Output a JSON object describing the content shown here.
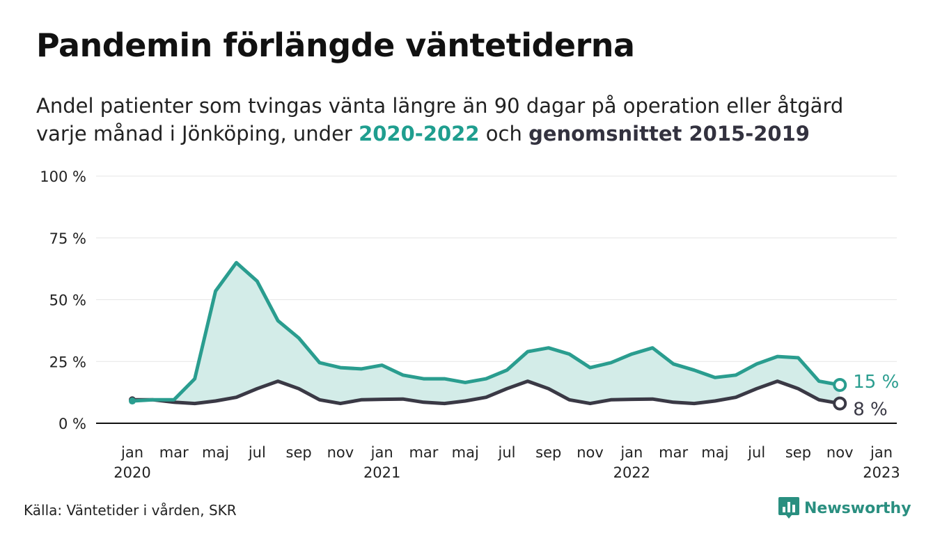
{
  "title": "Pandemin förlängde väntetiderna",
  "subtitle": {
    "line1": "Andel patienter som tvingas vänta längre än 90 dagar på operation eller åtgärd",
    "line2_prefix": "varje månad i Jönköping, under ",
    "highlight1": "2020-2022",
    "line2_middle": " och ",
    "highlight2": "genomsnittet 2015-2019"
  },
  "source": "Källa: Väntetider i vården, SKR",
  "logo": {
    "text": "Newsworthy",
    "icon": "newsworthy-chart-icon"
  },
  "colors": {
    "current": "#2a9d8f",
    "average": "#3a3945",
    "fill": "#d3ece8",
    "grid": "#e6e6e6",
    "baseline": "#111111"
  },
  "chart_data": {
    "type": "line",
    "title": "Pandemin förlängde väntetiderna",
    "x_start": "2020-01",
    "x_end": "2023-01",
    "x_ticks": [
      {
        "month": "2020-01",
        "label": "jan",
        "year": "2020"
      },
      {
        "month": "2020-03",
        "label": "mar",
        "year": ""
      },
      {
        "month": "2020-05",
        "label": "maj",
        "year": ""
      },
      {
        "month": "2020-07",
        "label": "jul",
        "year": ""
      },
      {
        "month": "2020-09",
        "label": "sep",
        "year": ""
      },
      {
        "month": "2020-11",
        "label": "nov",
        "year": ""
      },
      {
        "month": "2021-01",
        "label": "jan",
        "year": "2021"
      },
      {
        "month": "2021-03",
        "label": "mar",
        "year": ""
      },
      {
        "month": "2021-05",
        "label": "maj",
        "year": ""
      },
      {
        "month": "2021-07",
        "label": "jul",
        "year": ""
      },
      {
        "month": "2021-09",
        "label": "sep",
        "year": ""
      },
      {
        "month": "2021-11",
        "label": "nov",
        "year": ""
      },
      {
        "month": "2022-01",
        "label": "jan",
        "year": "2022"
      },
      {
        "month": "2022-03",
        "label": "mar",
        "year": ""
      },
      {
        "month": "2022-05",
        "label": "maj",
        "year": ""
      },
      {
        "month": "2022-07",
        "label": "jul",
        "year": ""
      },
      {
        "month": "2022-09",
        "label": "sep",
        "year": ""
      },
      {
        "month": "2022-11",
        "label": "nov",
        "year": ""
      },
      {
        "month": "2023-01",
        "label": "jan",
        "year": "2023"
      }
    ],
    "y_ticks": [
      {
        "value": 0,
        "label": "0 %"
      },
      {
        "value": 25,
        "label": "25 %"
      },
      {
        "value": 50,
        "label": "50 %"
      },
      {
        "value": 75,
        "label": "75 %"
      },
      {
        "value": 100,
        "label": "100 %"
      }
    ],
    "ylim": [
      0,
      100
    ],
    "grid": true,
    "series": [
      {
        "name": "2020-2022",
        "color": "#2a9d8f",
        "end_label": "15 %",
        "values": [
          {
            "month": "2020-01",
            "y": 9
          },
          {
            "month": "2020-02",
            "y": 9.5
          },
          {
            "month": "2020-03",
            "y": 9.5
          },
          {
            "month": "2020-04",
            "y": 18
          },
          {
            "month": "2020-05",
            "y": 53.5
          },
          {
            "month": "2020-06",
            "y": 65
          },
          {
            "month": "2020-07",
            "y": 57.5
          },
          {
            "month": "2020-08",
            "y": 41.5
          },
          {
            "month": "2020-09",
            "y": 34.5
          },
          {
            "month": "2020-10",
            "y": 24.5
          },
          {
            "month": "2020-11",
            "y": 22.5
          },
          {
            "month": "2020-12",
            "y": 22
          },
          {
            "month": "2021-01",
            "y": 23.5
          },
          {
            "month": "2021-02",
            "y": 19.5
          },
          {
            "month": "2021-03",
            "y": 18
          },
          {
            "month": "2021-04",
            "y": 18
          },
          {
            "month": "2021-05",
            "y": 16.5
          },
          {
            "month": "2021-06",
            "y": 18
          },
          {
            "month": "2021-07",
            "y": 21.5
          },
          {
            "month": "2021-08",
            "y": 29
          },
          {
            "month": "2021-09",
            "y": 30.5
          },
          {
            "month": "2021-10",
            "y": 28
          },
          {
            "month": "2021-11",
            "y": 22.5
          },
          {
            "month": "2021-12",
            "y": 24.5
          },
          {
            "month": "2022-01",
            "y": 28
          },
          {
            "month": "2022-02",
            "y": 30.5
          },
          {
            "month": "2022-03",
            "y": 24
          },
          {
            "month": "2022-04",
            "y": 21.5
          },
          {
            "month": "2022-05",
            "y": 18.5
          },
          {
            "month": "2022-06",
            "y": 19.5
          },
          {
            "month": "2022-07",
            "y": 24
          },
          {
            "month": "2022-08",
            "y": 27
          },
          {
            "month": "2022-09",
            "y": 26.5
          },
          {
            "month": "2022-10",
            "y": 17
          },
          {
            "month": "2022-11",
            "y": 15.5
          }
        ]
      },
      {
        "name": "genomsnittet 2015-2019",
        "color": "#3a3945",
        "end_label": "8 %",
        "values": [
          {
            "month": "2020-01",
            "y": 9.5
          },
          {
            "month": "2020-02",
            "y": 9.5
          },
          {
            "month": "2020-03",
            "y": 8.5
          },
          {
            "month": "2020-04",
            "y": 8
          },
          {
            "month": "2020-05",
            "y": 9
          },
          {
            "month": "2020-06",
            "y": 10.5
          },
          {
            "month": "2020-07",
            "y": 14
          },
          {
            "month": "2020-08",
            "y": 17
          },
          {
            "month": "2020-09",
            "y": 14
          },
          {
            "month": "2020-10",
            "y": 9.5
          },
          {
            "month": "2020-11",
            "y": 8
          },
          {
            "month": "2020-12",
            "y": 9.5
          },
          {
            "month": "2021-01",
            "y": 9.7
          },
          {
            "month": "2021-02",
            "y": 9.8
          },
          {
            "month": "2021-03",
            "y": 8.5
          },
          {
            "month": "2021-04",
            "y": 8
          },
          {
            "month": "2021-05",
            "y": 9
          },
          {
            "month": "2021-06",
            "y": 10.5
          },
          {
            "month": "2021-07",
            "y": 14
          },
          {
            "month": "2021-08",
            "y": 17
          },
          {
            "month": "2021-09",
            "y": 14
          },
          {
            "month": "2021-10",
            "y": 9.5
          },
          {
            "month": "2021-11",
            "y": 8
          },
          {
            "month": "2021-12",
            "y": 9.5
          },
          {
            "month": "2022-01",
            "y": 9.7
          },
          {
            "month": "2022-02",
            "y": 9.8
          },
          {
            "month": "2022-03",
            "y": 8.5
          },
          {
            "month": "2022-04",
            "y": 8
          },
          {
            "month": "2022-05",
            "y": 9
          },
          {
            "month": "2022-06",
            "y": 10.5
          },
          {
            "month": "2022-07",
            "y": 14
          },
          {
            "month": "2022-08",
            "y": 17
          },
          {
            "month": "2022-09",
            "y": 14
          },
          {
            "month": "2022-10",
            "y": 9.5
          },
          {
            "month": "2022-11",
            "y": 8
          }
        ]
      }
    ]
  }
}
